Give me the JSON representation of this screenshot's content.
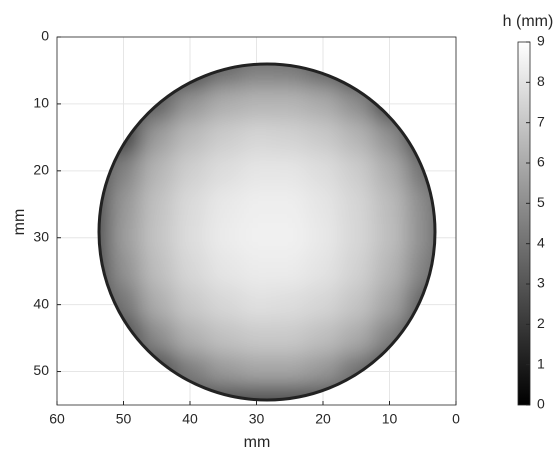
{
  "chart_data": {
    "type": "heatmap",
    "xlabel": "mm",
    "ylabel": "mm",
    "colorbar_label": "h (mm)",
    "x": [
      5,
      10,
      15,
      20,
      25,
      30,
      35,
      40,
      45,
      50,
      55
    ],
    "y": [
      5,
      10,
      15,
      20,
      25,
      30,
      35,
      40,
      45,
      50
    ],
    "z": [
      [
        null,
        null,
        null,
        3.5,
        4.4,
        4.5,
        3.8,
        null,
        null,
        null,
        null
      ],
      [
        null,
        2.0,
        5.0,
        6.0,
        6.4,
        6.4,
        6.1,
        5.3,
        3.3,
        null,
        null
      ],
      [
        null,
        5.1,
        6.4,
        7.1,
        7.4,
        7.5,
        7.2,
        6.6,
        5.5,
        2.0,
        null
      ],
      [
        4.0,
        6.1,
        7.2,
        7.8,
        8.1,
        8.1,
        7.8,
        7.3,
        6.4,
        4.6,
        null
      ],
      [
        4.9,
        6.6,
        7.5,
        8.1,
        8.4,
        8.4,
        8.2,
        7.7,
        6.8,
        5.3,
        null
      ],
      [
        5.0,
        6.7,
        7.6,
        8.2,
        8.5,
        8.5,
        8.3,
        7.8,
        6.9,
        5.5,
        null
      ],
      [
        4.6,
        6.4,
        7.4,
        8.0,
        8.3,
        8.3,
        8.1,
        7.6,
        6.7,
        5.1,
        null
      ],
      [
        3.3,
        5.8,
        6.9,
        7.5,
        7.8,
        7.9,
        7.6,
        7.1,
        6.1,
        4.1,
        null
      ],
      [
        null,
        4.5,
        6.0,
        6.7,
        7.1,
        7.1,
        6.8,
        6.2,
        4.9,
        null,
        null
      ],
      [
        null,
        null,
        4.0,
        5.3,
        5.8,
        5.8,
        5.4,
        4.4,
        null,
        null,
        null
      ]
    ],
    "xlim": [
      60,
      0
    ],
    "xticks": [
      60,
      50,
      40,
      30,
      20,
      10,
      0
    ],
    "ylim": [
      55,
      0
    ],
    "yticks": [
      0,
      10,
      20,
      30,
      40,
      50
    ],
    "clim": [
      0,
      9
    ],
    "cticks": [
      0,
      1,
      2,
      3,
      4,
      5,
      6,
      7,
      8,
      9
    ],
    "colormap": "gray",
    "grid": true
  }
}
